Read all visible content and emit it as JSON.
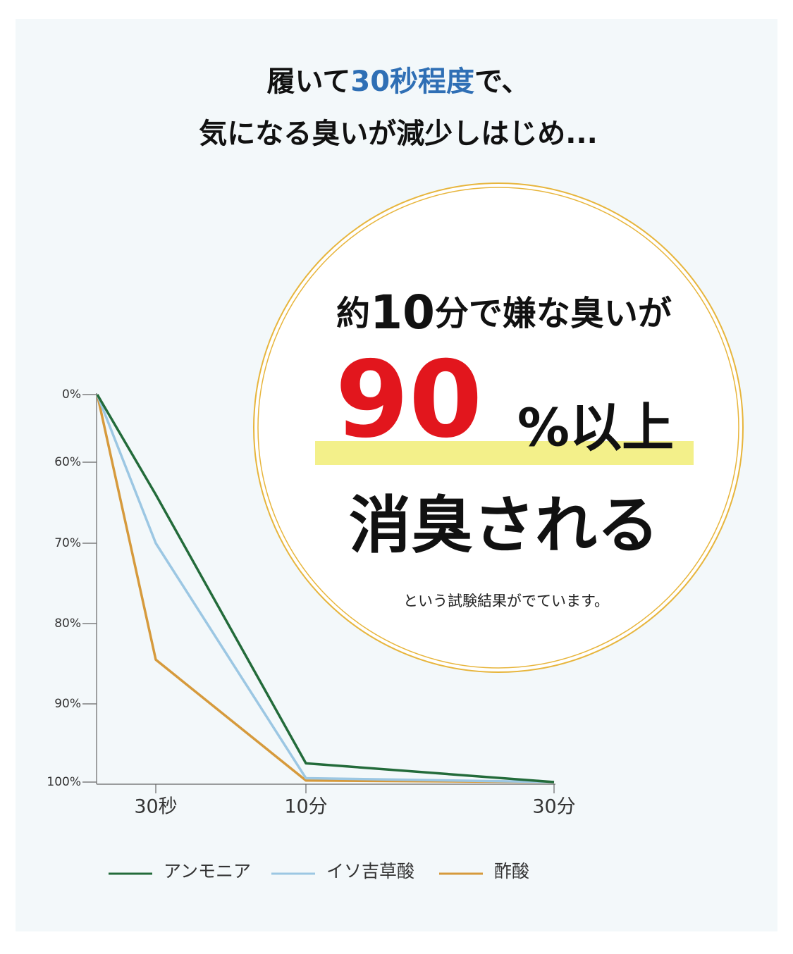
{
  "headline": {
    "line1": [
      "履いて",
      "30秒程度",
      "で、"
    ],
    "line2": "気になる臭いが減少しはじめ..."
  },
  "badge": {
    "line1": [
      "約",
      "10",
      "分で嫌な臭いが"
    ],
    "big": "90",
    "suffix": "%以上",
    "line3": "消臭される",
    "note": "という試験結果がでています。"
  },
  "chart_data": {
    "type": "line",
    "categories": [
      null,
      "30秒",
      "10分",
      "30分"
    ],
    "yticks": [
      {
        "value": 0,
        "label": "0%"
      },
      {
        "value": 60,
        "label": "60%"
      },
      {
        "value": 70,
        "label": "70%"
      },
      {
        "value": 80,
        "label": "80%"
      },
      {
        "value": 90,
        "label": "90%"
      },
      {
        "value": 100,
        "label": "100%"
      }
    ],
    "ylim": [
      0,
      100
    ],
    "inverted": true,
    "series": [
      {
        "name": "アンモニア",
        "color": "#236b3a",
        "values": [
          0,
          64,
          97.6,
          100
        ]
      },
      {
        "name": "イソ吉草酸",
        "color": "#9cc7e3",
        "values": [
          0,
          70,
          99.5,
          100
        ]
      },
      {
        "name": "酢酸",
        "color": "#d69a3c",
        "values": [
          0,
          84.5,
          99.8,
          100
        ]
      }
    ]
  }
}
